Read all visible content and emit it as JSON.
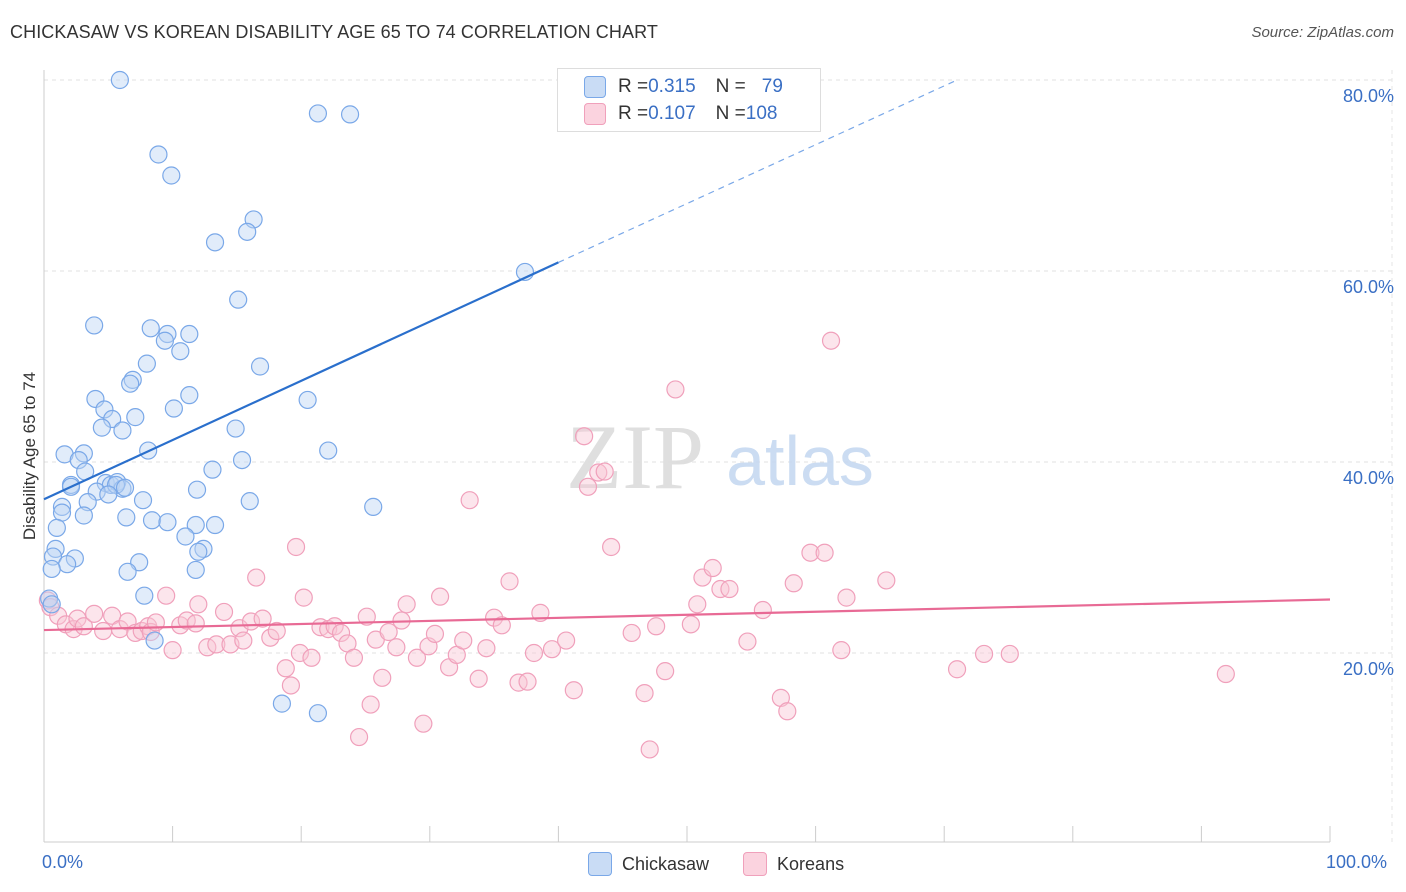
{
  "title": "CHICKASAW VS KOREAN DISABILITY AGE 65 TO 74 CORRELATION CHART",
  "source": "Source: ZipAtlas.com",
  "watermark": {
    "zip": "ZIP",
    "atlas": "atlas"
  },
  "stats": [
    {
      "r_label": "R = ",
      "r_value": "0.315",
      "n_label": "N = ",
      "n_value": "79",
      "color": "#a8c8f0"
    },
    {
      "r_label": "R = ",
      "r_value": "0.107",
      "n_label": "N = ",
      "n_value": "108",
      "color": "#f6b8cb"
    }
  ],
  "legend": [
    "Chickasaw",
    "Koreans"
  ],
  "x_tick_labels": {
    "left": "0.0%",
    "right": "100.0%"
  },
  "y_tick_labels": [
    "80.0%",
    "60.0%",
    "40.0%",
    "20.0%"
  ],
  "chart_data": {
    "type": "scatter",
    "title": "CHICKASAW VS KOREAN DISABILITY AGE 65 TO 74 CORRELATION CHART",
    "xlabel": "",
    "ylabel": "Disability Age 65 to 74",
    "xlim": [
      0,
      100
    ],
    "ylim": [
      0,
      85
    ],
    "y_ticks": [
      20,
      40,
      60,
      80
    ],
    "grid": true,
    "legend_position": "bottom",
    "series": [
      {
        "name": "Chickasaw",
        "color": "#7aa8e8",
        "trend": {
          "x0": 0,
          "y0": 36.1,
          "x1": 40,
          "y1": 60.9,
          "dashed_to_x": 71,
          "dashed_to_y": 80.0,
          "color": "#2a6fcc"
        },
        "points": [
          [
            5.9,
            80.0
          ],
          [
            21.3,
            76.5
          ],
          [
            23.8,
            76.4
          ],
          [
            8.9,
            72.2
          ],
          [
            9.9,
            70.0
          ],
          [
            16.3,
            65.4
          ],
          [
            15.8,
            64.1
          ],
          [
            13.3,
            63.0
          ],
          [
            37.4,
            59.9
          ],
          [
            15.1,
            57.0
          ],
          [
            3.9,
            54.3
          ],
          [
            8.3,
            54.0
          ],
          [
            9.6,
            53.4
          ],
          [
            11.3,
            53.4
          ],
          [
            9.4,
            52.7
          ],
          [
            10.6,
            51.6
          ],
          [
            8.0,
            50.3
          ],
          [
            16.8,
            50.0
          ],
          [
            6.9,
            48.6
          ],
          [
            6.7,
            48.2
          ],
          [
            11.3,
            47.0
          ],
          [
            20.5,
            46.5
          ],
          [
            4.0,
            46.6
          ],
          [
            10.1,
            45.6
          ],
          [
            4.7,
            45.5
          ],
          [
            5.3,
            44.5
          ],
          [
            7.1,
            44.7
          ],
          [
            4.5,
            43.6
          ],
          [
            6.1,
            43.3
          ],
          [
            14.9,
            43.5
          ],
          [
            8.1,
            41.2
          ],
          [
            22.1,
            41.2
          ],
          [
            1.6,
            40.8
          ],
          [
            3.1,
            40.9
          ],
          [
            2.7,
            40.2
          ],
          [
            15.4,
            40.2
          ],
          [
            13.1,
            39.2
          ],
          [
            3.2,
            39.0
          ],
          [
            4.8,
            37.8
          ],
          [
            2.1,
            37.6
          ],
          [
            5.2,
            37.6
          ],
          [
            5.7,
            37.9
          ],
          [
            6.1,
            37.2
          ],
          [
            5.6,
            37.6
          ],
          [
            6.3,
            37.3
          ],
          [
            4.1,
            36.9
          ],
          [
            2.1,
            37.4
          ],
          [
            11.9,
            37.1
          ],
          [
            5.0,
            36.6
          ],
          [
            3.4,
            35.8
          ],
          [
            7.7,
            36.0
          ],
          [
            16.0,
            35.9
          ],
          [
            25.6,
            35.3
          ],
          [
            1.4,
            35.3
          ],
          [
            1.4,
            34.7
          ],
          [
            3.1,
            34.4
          ],
          [
            6.4,
            34.2
          ],
          [
            8.4,
            33.9
          ],
          [
            9.6,
            33.7
          ],
          [
            11.8,
            33.4
          ],
          [
            13.3,
            33.4
          ],
          [
            1.0,
            33.1
          ],
          [
            11.0,
            32.2
          ],
          [
            12.4,
            30.9
          ],
          [
            0.9,
            30.9
          ],
          [
            0.7,
            30.1
          ],
          [
            2.4,
            29.9
          ],
          [
            12.0,
            30.6
          ],
          [
            7.4,
            29.5
          ],
          [
            1.8,
            29.3
          ],
          [
            0.6,
            28.8
          ],
          [
            6.5,
            28.5
          ],
          [
            11.8,
            28.7
          ],
          [
            7.8,
            26.0
          ],
          [
            0.4,
            25.7
          ],
          [
            0.6,
            25.1
          ],
          [
            8.6,
            21.3
          ],
          [
            18.5,
            14.7
          ],
          [
            21.3,
            13.7
          ]
        ]
      },
      {
        "name": "Koreans",
        "color": "#f0a0bb",
        "trend": {
          "x0": 0,
          "y0": 22.4,
          "x1": 100,
          "y1": 25.6,
          "color": "#e86a95"
        },
        "points": [
          [
            0.3,
            25.5
          ],
          [
            0.5,
            24.8
          ],
          [
            1.1,
            23.9
          ],
          [
            1.7,
            23.0
          ],
          [
            2.3,
            22.5
          ],
          [
            2.6,
            23.6
          ],
          [
            3.1,
            22.8
          ],
          [
            3.9,
            24.1
          ],
          [
            4.6,
            22.3
          ],
          [
            5.3,
            23.9
          ],
          [
            5.9,
            22.5
          ],
          [
            6.5,
            23.3
          ],
          [
            7.1,
            22.1
          ],
          [
            7.6,
            22.3
          ],
          [
            8.1,
            22.8
          ],
          [
            8.3,
            22.2
          ],
          [
            8.7,
            23.2
          ],
          [
            9.5,
            26.0
          ],
          [
            10.0,
            20.3
          ],
          [
            10.6,
            22.9
          ],
          [
            11.1,
            23.4
          ],
          [
            11.8,
            23.1
          ],
          [
            12.0,
            25.1
          ],
          [
            12.7,
            20.6
          ],
          [
            13.4,
            20.9
          ],
          [
            14.0,
            24.3
          ],
          [
            14.5,
            20.9
          ],
          [
            15.2,
            22.6
          ],
          [
            15.5,
            21.3
          ],
          [
            16.1,
            23.3
          ],
          [
            16.5,
            27.9
          ],
          [
            17.0,
            23.6
          ],
          [
            17.6,
            21.6
          ],
          [
            18.1,
            22.3
          ],
          [
            18.8,
            18.4
          ],
          [
            19.2,
            16.6
          ],
          [
            19.6,
            31.1
          ],
          [
            19.9,
            20.0
          ],
          [
            20.2,
            25.8
          ],
          [
            20.8,
            19.5
          ],
          [
            21.5,
            22.7
          ],
          [
            22.1,
            22.5
          ],
          [
            22.6,
            22.8
          ],
          [
            23.1,
            22.1
          ],
          [
            23.6,
            21.0
          ],
          [
            24.1,
            19.5
          ],
          [
            24.5,
            11.2
          ],
          [
            25.1,
            23.8
          ],
          [
            25.4,
            14.6
          ],
          [
            25.8,
            21.4
          ],
          [
            26.3,
            17.4
          ],
          [
            26.8,
            22.2
          ],
          [
            27.4,
            20.6
          ],
          [
            27.8,
            23.4
          ],
          [
            28.2,
            25.1
          ],
          [
            29.0,
            19.5
          ],
          [
            29.5,
            12.6
          ],
          [
            29.9,
            20.7
          ],
          [
            30.4,
            22.0
          ],
          [
            30.8,
            25.9
          ],
          [
            31.5,
            18.5
          ],
          [
            32.1,
            19.8
          ],
          [
            32.6,
            21.3
          ],
          [
            33.1,
            36.0
          ],
          [
            33.8,
            17.3
          ],
          [
            34.4,
            20.5
          ],
          [
            35.0,
            23.7
          ],
          [
            35.6,
            22.9
          ],
          [
            36.2,
            27.5
          ],
          [
            36.9,
            16.9
          ],
          [
            37.6,
            17.0
          ],
          [
            38.1,
            20.0
          ],
          [
            38.6,
            24.2
          ],
          [
            39.5,
            20.4
          ],
          [
            40.6,
            21.3
          ],
          [
            41.2,
            16.1
          ],
          [
            42.0,
            42.7
          ],
          [
            42.3,
            37.4
          ],
          [
            43.1,
            38.9
          ],
          [
            43.6,
            39.0
          ],
          [
            44.1,
            31.1
          ],
          [
            45.7,
            22.1
          ],
          [
            46.7,
            15.8
          ],
          [
            47.1,
            9.9
          ],
          [
            47.6,
            22.8
          ],
          [
            48.3,
            18.1
          ],
          [
            49.1,
            47.6
          ],
          [
            50.3,
            23.0
          ],
          [
            50.8,
            25.1
          ],
          [
            51.2,
            27.9
          ],
          [
            52.0,
            28.9
          ],
          [
            52.6,
            26.7
          ],
          [
            53.3,
            26.7
          ],
          [
            54.7,
            21.2
          ],
          [
            55.9,
            24.5
          ],
          [
            57.3,
            15.3
          ],
          [
            57.8,
            13.9
          ],
          [
            58.3,
            27.3
          ],
          [
            59.6,
            30.5
          ],
          [
            60.7,
            30.5
          ],
          [
            61.2,
            52.7
          ],
          [
            62.0,
            20.3
          ],
          [
            62.4,
            25.8
          ],
          [
            65.5,
            27.6
          ],
          [
            71.0,
            18.3
          ],
          [
            73.1,
            19.9
          ],
          [
            75.1,
            19.9
          ],
          [
            91.9,
            17.8
          ]
        ]
      }
    ]
  }
}
